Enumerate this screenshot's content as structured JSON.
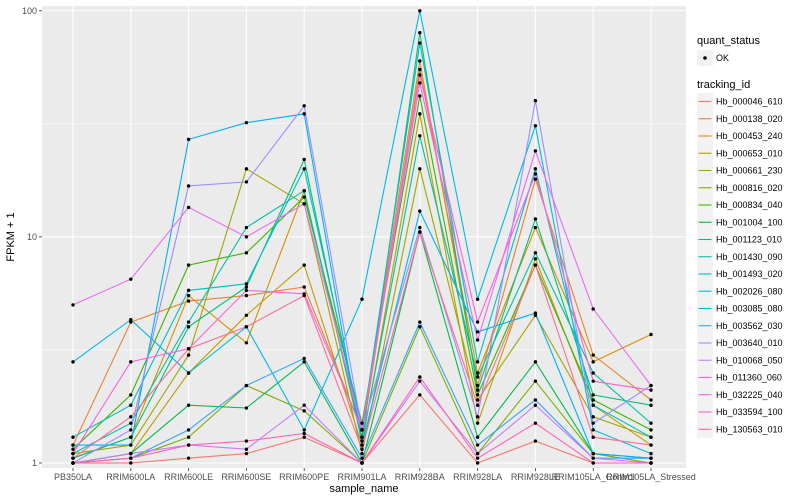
{
  "chart_data": {
    "type": "line",
    "xlabel": "sample_name",
    "ylabel": "FPKM + 1",
    "y_scale": "log10",
    "ylim": [
      0.95,
      105
    ],
    "y_ticks": [
      1,
      10,
      100
    ],
    "y_tick_labels": [
      "1",
      "10",
      "100"
    ],
    "categories": [
      "PB350LA",
      "RRIM600LA",
      "RRIM600LE",
      "RRIM600SE",
      "RRIM600PE",
      "RRIM901LA",
      "RRIM928BA",
      "RRIM928LA",
      "RRIM928LE",
      "RRIM105LA_Control",
      "RRIM105LA_Stressed"
    ],
    "category_labels": [
      "PB350LA",
      "RRIM600LA",
      "RRIM600LE",
      "RRIM600SE",
      "RRIM600PE",
      "RRIM901LA",
      "RRIM928BA",
      "RRIM928LA",
      "RRIM928LE",
      "RRIM105LA_Control",
      "RRIM105LA_Stressed"
    ],
    "legend_placement": "right",
    "grid": true,
    "quant_status_legend": {
      "title": "quant_status",
      "entries": [
        "OK"
      ]
    },
    "series_legend_title": "tracking_id",
    "series": [
      {
        "name": "Hb_000046_610",
        "color": "#F8766D",
        "values": [
          1.0,
          1.0,
          1.05,
          1.1,
          1.3,
          1.0,
          2.0,
          1.0,
          1.25,
          1.0,
          1.0
        ]
      },
      {
        "name": "Hb_000138_020",
        "color": "#EA8331",
        "values": [
          1.2,
          4.2,
          5.2,
          5.5,
          6.0,
          1.4,
          60,
          2.2,
          18,
          3.0,
          1.9
        ]
      },
      {
        "name": "Hb_000453_240",
        "color": "#D89000",
        "values": [
          1.05,
          1.3,
          5.5,
          3.4,
          16,
          1.3,
          55,
          2.5,
          11,
          2.8,
          3.7
        ]
      },
      {
        "name": "Hb_000653_010",
        "color": "#C09B00",
        "values": [
          1.0,
          1.1,
          2.5,
          4.5,
          7.5,
          1.2,
          35,
          1.5,
          8,
          1.8,
          1.2
        ]
      },
      {
        "name": "Hb_000661_230",
        "color": "#A3A500",
        "values": [
          1.1,
          1.2,
          3.0,
          20,
          14,
          1.1,
          20,
          1.9,
          4.5,
          1.6,
          1.3
        ]
      },
      {
        "name": "Hb_000816_020",
        "color": "#7CAE00",
        "values": [
          1.0,
          1.05,
          1.3,
          2.2,
          1.7,
          1.0,
          4.0,
          1.1,
          2.3,
          1.1,
          1.0
        ]
      },
      {
        "name": "Hb_000834_040",
        "color": "#39B600",
        "values": [
          1.15,
          2.0,
          7.5,
          8.5,
          15,
          1.5,
          42,
          2.0,
          7.5,
          1.9,
          1.4
        ]
      },
      {
        "name": "Hb_001004_100",
        "color": "#00BB4E",
        "values": [
          1.0,
          1.1,
          1.8,
          1.75,
          2.8,
          1.0,
          10.5,
          1.3,
          2.8,
          1.1,
          1.05
        ]
      },
      {
        "name": "Hb_001123_010",
        "color": "#00BF7D",
        "values": [
          1.05,
          1.3,
          4.0,
          6.0,
          22,
          1.3,
          80,
          2.1,
          12,
          2.0,
          1.8
        ]
      },
      {
        "name": "Hb_001430_090",
        "color": "#00C1A3",
        "values": [
          1.1,
          1.5,
          4.2,
          11.0,
          16,
          1.25,
          28,
          2.4,
          8.5,
          2.5,
          1.5
        ]
      },
      {
        "name": "Hb_001493_020",
        "color": "#00BFC4",
        "values": [
          1.3,
          1.8,
          5.8,
          6.2,
          20,
          1.4,
          72,
          2.8,
          20,
          1.8,
          1.3
        ]
      },
      {
        "name": "Hb_002026_080",
        "color": "#00BAE0",
        "values": [
          2.8,
          4.3,
          2.5,
          4.0,
          1.4,
          5.3,
          100,
          5.3,
          31,
          1.4,
          1.1
        ]
      },
      {
        "name": "Hb_003085_080",
        "color": "#00B0F6",
        "values": [
          1.2,
          1.2,
          27,
          32,
          35,
          1.2,
          13,
          3.8,
          4.6,
          1.1,
          1.05
        ]
      },
      {
        "name": "Hb_003562_030",
        "color": "#35A2FF",
        "values": [
          1.0,
          1.05,
          1.4,
          2.2,
          2.9,
          1.05,
          4.2,
          1.2,
          1.9,
          1.05,
          1.05
        ]
      },
      {
        "name": "Hb_003640_010",
        "color": "#9590FF",
        "values": [
          1.0,
          1.4,
          16.8,
          17.5,
          38,
          1.4,
          11,
          1.6,
          40,
          1.5,
          2.2
        ]
      },
      {
        "name": "Hb_010068_050",
        "color": "#C77CFF",
        "values": [
          1.0,
          1.1,
          1.2,
          1.15,
          1.8,
          1.0,
          2.3,
          1.1,
          1.8,
          1.05,
          1.0
        ]
      },
      {
        "name": "Hb_011360_060",
        "color": "#E76BF3",
        "values": [
          5.0,
          6.5,
          13.5,
          10.0,
          14,
          1.4,
          48,
          3.5,
          24,
          4.8,
          2.2
        ]
      },
      {
        "name": "Hb_032225_040",
        "color": "#FA62DB",
        "values": [
          1.1,
          2.8,
          3.2,
          5.8,
          5.6,
          1.4,
          52,
          4.2,
          19,
          2.3,
          2.1
        ]
      },
      {
        "name": "Hb_033594_100",
        "color": "#FF62BC",
        "values": [
          1.0,
          1.05,
          1.2,
          1.25,
          1.35,
          1.0,
          2.4,
          1.05,
          1.5,
          1.0,
          1.0
        ]
      },
      {
        "name": "Hb_130563_010",
        "color": "#FF6C91",
        "values": [
          1.05,
          1.6,
          3.2,
          4.0,
          5.5,
          1.15,
          10.5,
          1.8,
          7.5,
          1.3,
          1.2
        ]
      }
    ]
  }
}
